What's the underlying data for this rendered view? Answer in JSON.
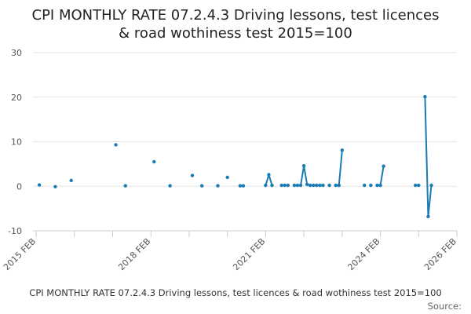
{
  "chart_data": {
    "type": "line",
    "title_line1": "CPI MONTHLY RATE 07.2.4.3 Driving lessons, test licences",
    "title_line2": "& road wothiness test 2015=100",
    "xlabel": "",
    "ylabel": "",
    "ylim": [
      -10,
      30
    ],
    "yticks": [
      "30",
      "20",
      "10",
      "0",
      "-10"
    ],
    "ytick_values": [
      30,
      20,
      10,
      0,
      -10
    ],
    "xticks": [
      "2015 FEB",
      "2018 FEB",
      "2021 FEB",
      "2024 FEB",
      "2026 FEB"
    ],
    "xtick_dates": [
      "2015-02",
      "2018-02",
      "2021-02",
      "2024-02",
      "2026-02"
    ],
    "xlim": [
      "2015-01",
      "2026-02"
    ],
    "grid": true,
    "color": "#1a7cb4",
    "legend": "CPI MONTHLY RATE 07.2.4.3 Driving lessons, test licences & road wothiness test 2015=100",
    "source_label": "Source:",
    "series": [
      {
        "points": [
          [
            "2015-03",
            0.3
          ],
          [
            "2015-08",
            -0.1
          ],
          [
            "2016-01",
            1.3
          ],
          [
            "2017-03",
            9.3
          ],
          [
            "2017-06",
            0.1
          ],
          [
            "2018-03",
            5.5
          ],
          [
            "2018-08",
            0.1
          ],
          [
            "2019-03",
            2.4
          ],
          [
            "2019-06",
            0.1
          ],
          [
            "2019-11",
            0.1
          ],
          [
            "2020-02",
            2.0
          ],
          [
            "2020-06",
            0.1
          ],
          [
            "2020-07",
            0.1
          ],
          [
            "2021-02",
            0.2
          ],
          [
            "2021-03",
            2.6
          ],
          [
            "2021-04",
            0.2
          ],
          [
            "2021-07",
            0.2
          ],
          [
            "2021-08",
            0.2
          ],
          [
            "2021-09",
            0.2
          ],
          [
            "2021-11",
            0.2
          ],
          [
            "2021-12",
            0.2
          ],
          [
            "2022-01",
            0.2
          ],
          [
            "2022-02",
            4.6
          ],
          [
            "2022-03",
            0.4
          ],
          [
            "2022-04",
            0.2
          ],
          [
            "2022-05",
            0.2
          ],
          [
            "2022-06",
            0.2
          ],
          [
            "2022-07",
            0.2
          ],
          [
            "2022-08",
            0.2
          ],
          [
            "2022-10",
            0.2
          ],
          [
            "2022-12",
            0.2
          ],
          [
            "2023-01",
            0.2
          ],
          [
            "2023-02",
            8.1
          ],
          [
            "2023-09",
            0.2
          ],
          [
            "2023-11",
            0.2
          ],
          [
            "2024-01",
            0.2
          ],
          [
            "2024-02",
            0.2
          ],
          [
            "2024-03",
            4.5
          ],
          [
            "2025-01",
            0.2
          ],
          [
            "2025-02",
            0.2
          ],
          [
            "2025-04",
            20.1
          ],
          [
            "2025-05",
            -6.8
          ],
          [
            "2025-06",
            0.2
          ]
        ]
      }
    ]
  }
}
